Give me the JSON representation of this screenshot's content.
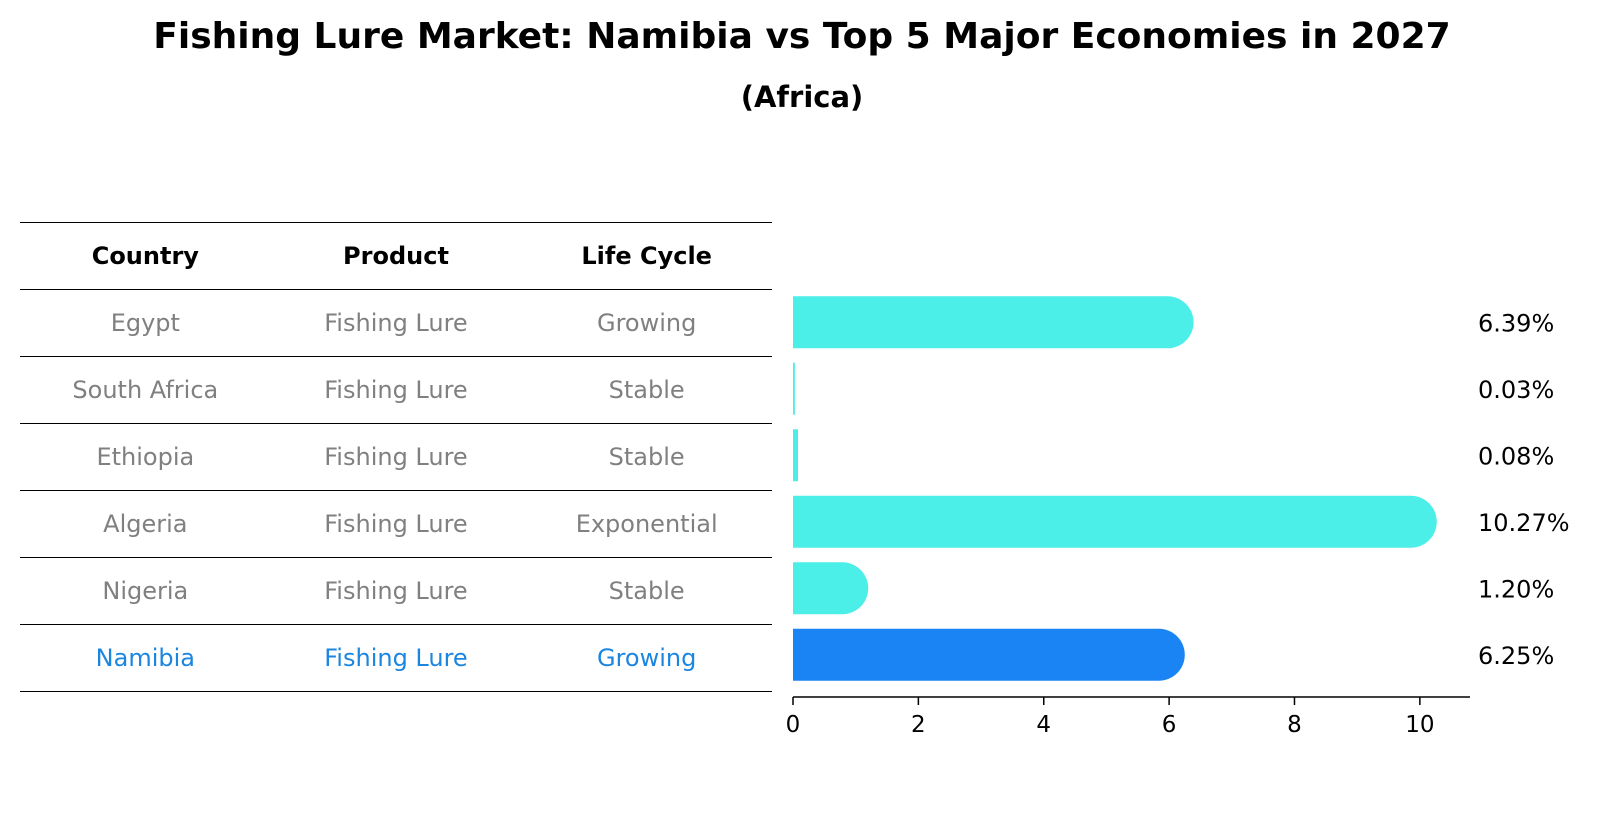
{
  "chart_data": {
    "type": "bar",
    "orientation": "horizontal",
    "title": "Fishing Lure Market: Namibia vs Top 5 Major Economies in 2027",
    "subtitle": "(Africa)",
    "categories": [
      "Egypt",
      "South Africa",
      "Ethiopia",
      "Algeria",
      "Nigeria",
      "Namibia"
    ],
    "values": [
      6.39,
      0.03,
      0.08,
      10.27,
      1.2,
      6.25
    ],
    "value_labels": [
      "6.39%",
      "0.03%",
      "0.08%",
      "10.27%",
      "1.20%",
      "6.25%"
    ],
    "highlight": "Namibia",
    "xlim": [
      0,
      10.8
    ],
    "xticks": [
      0,
      2,
      4,
      6,
      8,
      10
    ],
    "colors": {
      "default": "#4ceee8",
      "highlight": "#1a84f5"
    }
  },
  "table": {
    "headers": [
      "Country",
      "Product",
      "Life Cycle"
    ],
    "rows": [
      [
        "Egypt",
        "Fishing Lure",
        "Growing"
      ],
      [
        "South Africa",
        "Fishing Lure",
        "Stable"
      ],
      [
        "Ethiopia",
        "Fishing Lure",
        "Stable"
      ],
      [
        "Algeria",
        "Fishing Lure",
        "Exponential"
      ],
      [
        "Nigeria",
        "Fishing Lure",
        "Stable"
      ],
      [
        "Namibia",
        "Fishing Lure",
        "Growing"
      ]
    ]
  }
}
